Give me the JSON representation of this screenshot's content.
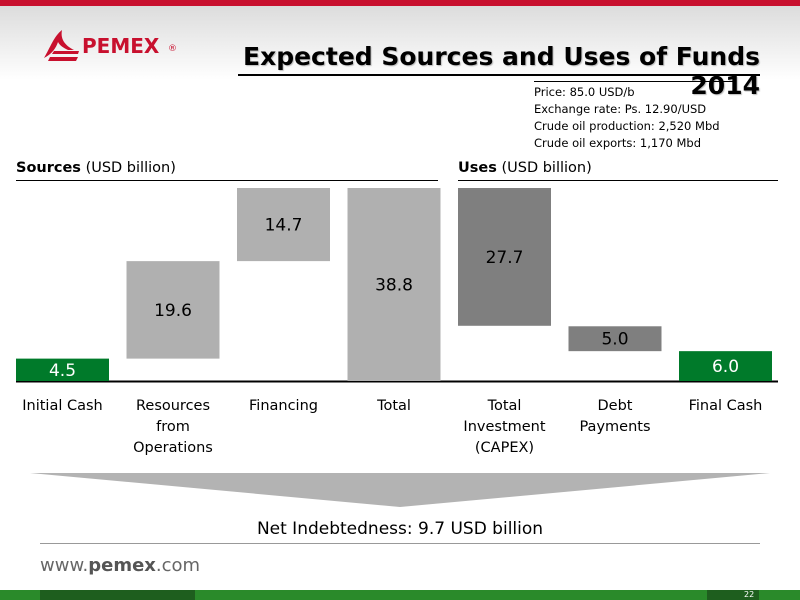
{
  "header": {
    "brand": "PEMEX",
    "registered": "®",
    "title": "Expected Sources and Uses of Funds 2014"
  },
  "assumptions": [
    "Price: 85.0 USD/b",
    "Exchange rate: Ps. 12.90/USD",
    "Crude oil production: 2,520 Mbd",
    "Crude oil exports: 1,170 Mbd"
  ],
  "sections": {
    "sources": {
      "bold": "Sources",
      "unit": "(USD billion)"
    },
    "uses": {
      "bold": "Uses",
      "unit": "(USD billion)"
    }
  },
  "chart_data": {
    "type": "bar",
    "subtype": "waterfall",
    "unit": "USD billion",
    "categories": [
      "Initial Cash",
      "Resources from Operations",
      "Financing",
      "Total",
      "Total Investment (CAPEX)",
      "Debt Payments",
      "Final Cash"
    ],
    "labels": [
      [
        "Initial Cash"
      ],
      [
        "Resources",
        "from",
        "Operations"
      ],
      [
        "Financing"
      ],
      [
        "Total"
      ],
      [
        "Total",
        "Investment",
        "(CAPEX)"
      ],
      [
        "Debt",
        "Payments"
      ],
      [
        "Final Cash"
      ]
    ],
    "values": [
      4.5,
      19.6,
      14.7,
      38.8,
      27.7,
      5.0,
      6.0
    ],
    "value_labels": [
      "4.5",
      "19.6",
      "14.7",
      "38.8",
      "27.7",
      "5.0",
      "6.0"
    ],
    "bases": [
      0,
      4.5,
      24.1,
      0,
      11.1,
      6.0,
      0
    ],
    "colors": [
      "#007a2a",
      "#b0b0b0",
      "#b0b0b0",
      "#b0b0b0",
      "#7f7f7f",
      "#7f7f7f",
      "#007a2a"
    ],
    "label_colors": [
      "#ffffff",
      "#000000",
      "#000000",
      "#000000",
      "#000000",
      "#000000",
      "#ffffff"
    ],
    "ylim": [
      0,
      38.8
    ]
  },
  "summary": {
    "text_prefix": "Net Indebtedness: ",
    "value": "9.7 USD billion"
  },
  "footer": {
    "url_prefix": "www.",
    "url_brand": "pemex",
    "url_suffix": ".com",
    "page": "22"
  }
}
